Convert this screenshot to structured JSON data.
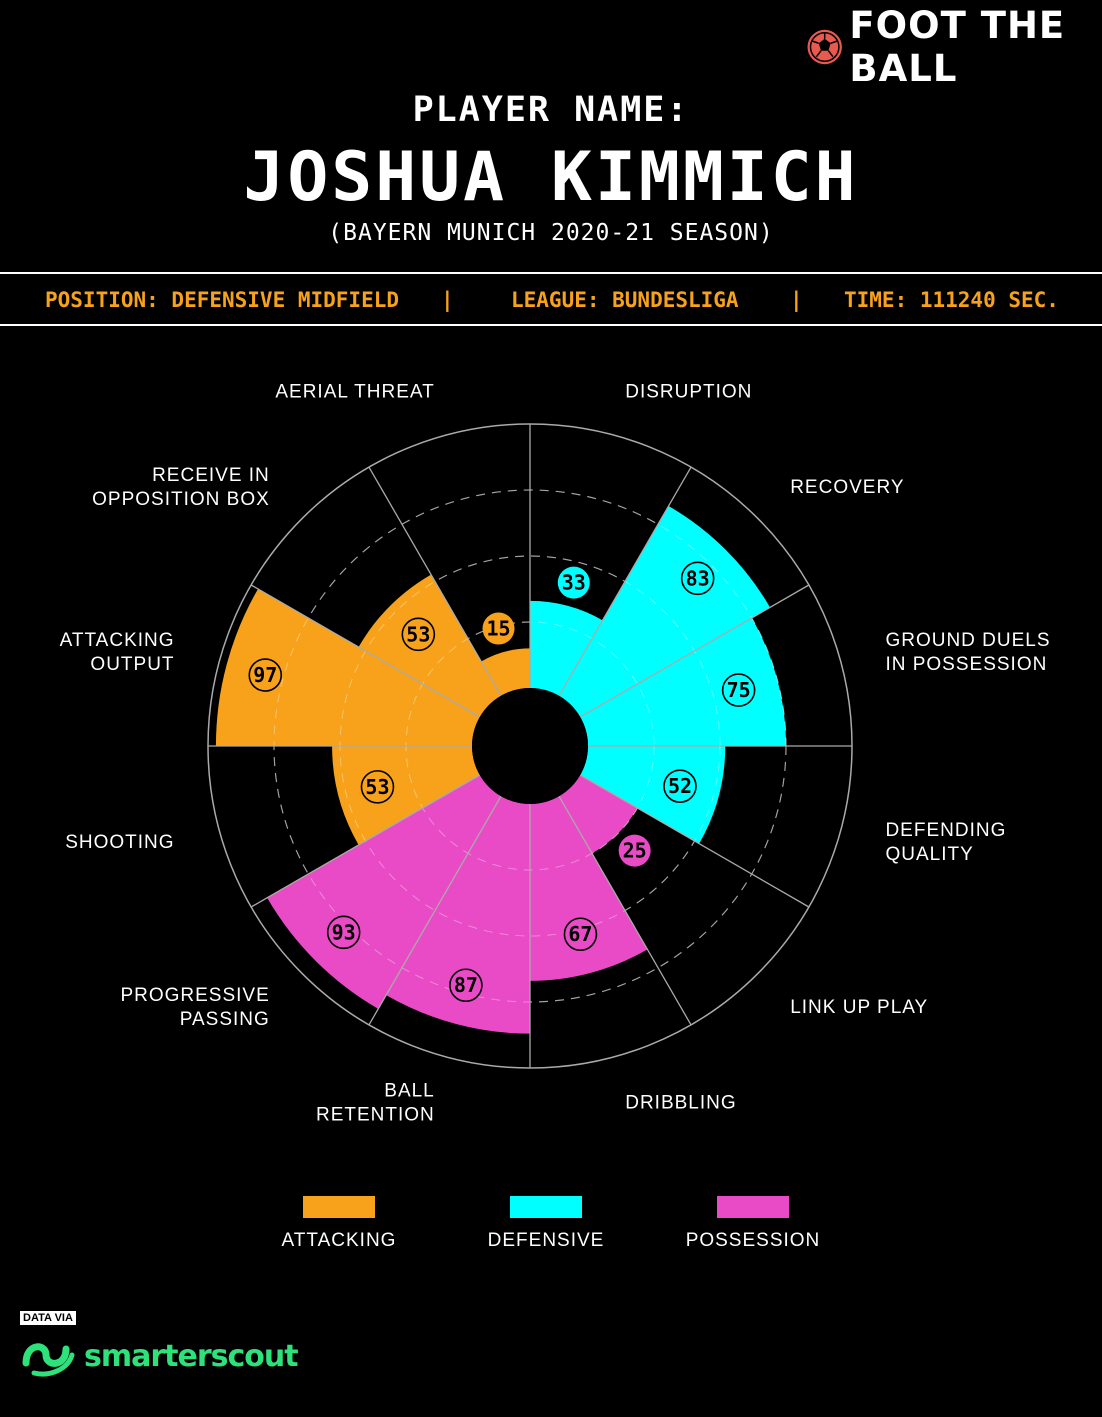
{
  "brand": {
    "logo_text": "FOOT THE BALL",
    "logo_icon": "football-icon"
  },
  "header": {
    "subtitle": "PLAYER NAME:",
    "player_name": "JOSHUA KIMMICH",
    "season": "(BAYERN MUNICH 2020-21 SEASON)"
  },
  "info": {
    "position": "POSITION: DEFENSIVE MIDFIELD",
    "sep1": "|",
    "league": "LEAGUE: BUNDESLIGA",
    "sep2": "|",
    "time": "TIME: 111240 SEC."
  },
  "chart_data": {
    "type": "radial-bar",
    "rmax": 100,
    "rings": [
      25,
      50,
      75,
      100
    ],
    "series_colors": {
      "ATTACKING": "#f7a21a",
      "DEFENSIVE": "#00ffff",
      "POSSESSION": "#e84bc5"
    },
    "categories": [
      {
        "label": [
          "DISRUPTION"
        ],
        "value": 33,
        "group": "DEFENSIVE"
      },
      {
        "label": [
          "RECOVERY"
        ],
        "value": 83,
        "group": "DEFENSIVE"
      },
      {
        "label": [
          "GROUND DUELS",
          "IN POSSESSION"
        ],
        "value": 75,
        "group": "DEFENSIVE"
      },
      {
        "label": [
          "DEFENDING",
          "QUALITY"
        ],
        "value": 52,
        "group": "DEFENSIVE"
      },
      {
        "label": [
          "LINK UP PLAY"
        ],
        "value": 25,
        "group": "POSSESSION"
      },
      {
        "label": [
          "DRIBBLING"
        ],
        "value": 67,
        "group": "POSSESSION"
      },
      {
        "label": [
          "BALL",
          "RETENTION"
        ],
        "value": 87,
        "group": "POSSESSION"
      },
      {
        "label": [
          "PROGRESSIVE",
          "PASSING"
        ],
        "value": 93,
        "group": "POSSESSION"
      },
      {
        "label": [
          "SHOOTING"
        ],
        "value": 53,
        "group": "ATTACKING"
      },
      {
        "label": [
          "ATTACKING",
          "OUTPUT"
        ],
        "value": 97,
        "group": "ATTACKING"
      },
      {
        "label": [
          "RECEIVE IN",
          "OPPOSITION BOX"
        ],
        "value": 53,
        "group": "ATTACKING"
      },
      {
        "label": [
          "AERIAL THREAT"
        ],
        "value": 15,
        "group": "ATTACKING"
      }
    ]
  },
  "legend": [
    {
      "label": "ATTACKING",
      "color": "#f7a21a"
    },
    {
      "label": "DEFENSIVE",
      "color": "#00ffff"
    },
    {
      "label": "POSSESSION",
      "color": "#e84bc5"
    }
  ],
  "footer": {
    "data_via": "DATA VIA",
    "source": "smarterscout",
    "source_icon": "smarterscout-logo-icon"
  }
}
